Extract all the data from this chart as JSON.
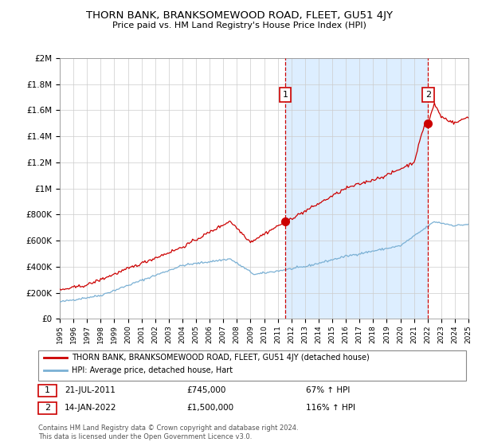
{
  "title": "THORN BANK, BRANKSOMEWOOD ROAD, FLEET, GU51 4JY",
  "subtitle": "Price paid vs. HM Land Registry's House Price Index (HPI)",
  "legend_label_red": "THORN BANK, BRANKSOMEWOOD ROAD, FLEET, GU51 4JY (detached house)",
  "legend_label_blue": "HPI: Average price, detached house, Hart",
  "annotation1_date": "21-JUL-2011",
  "annotation1_price": "£745,000",
  "annotation1_hpi": "67% ↑ HPI",
  "annotation2_date": "14-JAN-2022",
  "annotation2_price": "£1,500,000",
  "annotation2_hpi": "116% ↑ HPI",
  "footer": "Contains HM Land Registry data © Crown copyright and database right 2024.\nThis data is licensed under the Open Government Licence v3.0.",
  "sale1_year": 2011.55,
  "sale1_value": 745000,
  "sale2_year": 2022.04,
  "sale2_value": 1500000,
  "ylim": [
    0,
    2000000
  ],
  "xlim": [
    1995,
    2025
  ],
  "red_color": "#cc0000",
  "blue_color": "#7ab0d4",
  "shade_color": "#ddeeff",
  "vline_color": "#cc0000",
  "background_color": "#ffffff",
  "grid_color": "#cccccc"
}
